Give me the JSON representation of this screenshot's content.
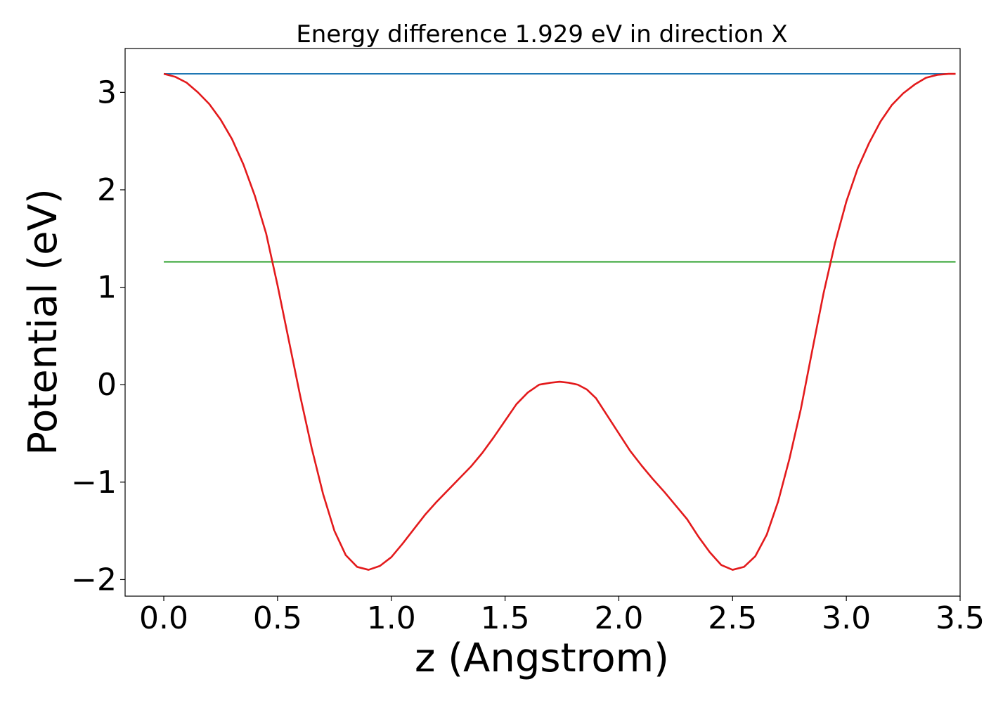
{
  "chart_data": {
    "type": "line",
    "title": "Energy difference 1.929 eV in direction X",
    "xlabel": "z (Angstrom)",
    "ylabel": "Potential (eV)",
    "xlim": [
      -0.17,
      3.5
    ],
    "ylim": [
      -2.17,
      3.45
    ],
    "xticks": [
      0.0,
      0.5,
      1.0,
      1.5,
      2.0,
      2.5,
      3.0,
      3.5
    ],
    "xtick_labels": [
      "0.0",
      "0.5",
      "1.0",
      "1.5",
      "2.0",
      "2.5",
      "3.0",
      "3.5"
    ],
    "yticks": [
      -2,
      -1,
      0,
      1,
      2,
      3
    ],
    "ytick_labels": [
      "−2",
      "−1",
      "0",
      "1",
      "2",
      "3"
    ],
    "grid": false,
    "legend": "none",
    "series": [
      {
        "color": "#1f77b4",
        "x": [
          0.0,
          3.48
        ],
        "y": [
          3.19,
          3.19
        ]
      },
      {
        "color": "#2ca02c",
        "x": [
          0.0,
          3.48
        ],
        "y": [
          1.26,
          1.26
        ]
      },
      {
        "color": "#e31a1c",
        "x": [
          0.0,
          0.05,
          0.1,
          0.15,
          0.2,
          0.25,
          0.3,
          0.35,
          0.4,
          0.45,
          0.5,
          0.55,
          0.6,
          0.65,
          0.7,
          0.75,
          0.8,
          0.85,
          0.9,
          0.95,
          1.0,
          1.05,
          1.1,
          1.15,
          1.2,
          1.25,
          1.3,
          1.35,
          1.4,
          1.45,
          1.5,
          1.55,
          1.6,
          1.65,
          1.7,
          1.74,
          1.78,
          1.82,
          1.86,
          1.9,
          1.95,
          2.0,
          2.05,
          2.1,
          2.15,
          2.2,
          2.25,
          2.3,
          2.35,
          2.4,
          2.45,
          2.5,
          2.55,
          2.6,
          2.65,
          2.7,
          2.75,
          2.8,
          2.85,
          2.9,
          2.95,
          3.0,
          3.05,
          3.1,
          3.15,
          3.2,
          3.25,
          3.3,
          3.35,
          3.4,
          3.45,
          3.48
        ],
        "y": [
          3.19,
          3.16,
          3.1,
          3.0,
          2.88,
          2.72,
          2.52,
          2.26,
          1.94,
          1.55,
          1.02,
          0.45,
          -0.12,
          -0.65,
          -1.12,
          -1.5,
          -1.75,
          -1.87,
          -1.9,
          -1.86,
          -1.77,
          -1.63,
          -1.48,
          -1.33,
          -1.2,
          -1.08,
          -0.96,
          -0.84,
          -0.7,
          -0.54,
          -0.37,
          -0.2,
          -0.08,
          0.0,
          0.02,
          0.03,
          0.02,
          0.0,
          -0.05,
          -0.14,
          -0.32,
          -0.5,
          -0.68,
          -0.83,
          -0.97,
          -1.1,
          -1.24,
          -1.38,
          -1.56,
          -1.72,
          -1.85,
          -1.9,
          -1.87,
          -1.76,
          -1.54,
          -1.2,
          -0.76,
          -0.25,
          0.35,
          0.94,
          1.45,
          1.88,
          2.22,
          2.48,
          2.7,
          2.87,
          2.99,
          3.08,
          3.15,
          3.18,
          3.19,
          3.19
        ]
      }
    ]
  }
}
